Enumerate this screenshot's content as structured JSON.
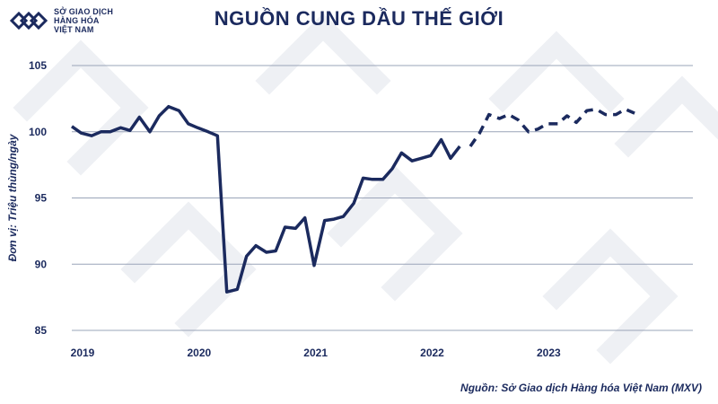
{
  "header": {
    "logo_lines": [
      "SỞ GIAO DỊCH",
      "HÀNG HÓA",
      "VIỆT NAM"
    ],
    "title": "NGUỒN CUNG DẦU THẾ GIỚI"
  },
  "source": "Nguồn: Sở Giao dịch Hàng hóa Việt Nam (MXV)",
  "colors": {
    "primary": "#1b2a5e",
    "grid": "#9aa4b8"
  },
  "chart_data": {
    "type": "line",
    "title": "NGUỒN CUNG DẦU THẾ GIỚI",
    "ylabel": "Đơn vị: Triệu thùng/ngày",
    "xlabel": "",
    "ylim": [
      85,
      105
    ],
    "xlim": [
      2019.0,
      2024.33
    ],
    "yticks": [
      85,
      90,
      95,
      100,
      105
    ],
    "xticks": [
      {
        "label": "2019",
        "value": 2019.0
      },
      {
        "label": "2020",
        "value": 2020.0
      },
      {
        "label": "2021",
        "value": 2021.0
      },
      {
        "label": "2022",
        "value": 2022.0
      },
      {
        "label": "2023",
        "value": 2023.0
      }
    ],
    "grid": true,
    "series": [
      {
        "style": "solid",
        "points": [
          [
            2019.0,
            100.4
          ],
          [
            2019.08,
            99.9
          ],
          [
            2019.17,
            99.7
          ],
          [
            2019.25,
            100.0
          ],
          [
            2019.33,
            100.0
          ],
          [
            2019.42,
            100.3
          ],
          [
            2019.5,
            100.1
          ],
          [
            2019.58,
            101.1
          ],
          [
            2019.67,
            100.0
          ],
          [
            2019.75,
            101.2
          ],
          [
            2019.83,
            101.9
          ],
          [
            2019.92,
            101.6
          ],
          [
            2020.0,
            100.6
          ],
          [
            2020.08,
            100.3
          ],
          [
            2020.17,
            100.0
          ],
          [
            2020.25,
            99.7
          ],
          [
            2020.33,
            87.9
          ],
          [
            2020.42,
            88.1
          ],
          [
            2020.5,
            90.6
          ],
          [
            2020.58,
            91.4
          ],
          [
            2020.67,
            90.9
          ],
          [
            2020.75,
            91.0
          ],
          [
            2020.83,
            92.8
          ],
          [
            2020.92,
            92.7
          ],
          [
            2021.0,
            93.5
          ],
          [
            2021.08,
            89.9
          ],
          [
            2021.17,
            93.3
          ],
          [
            2021.25,
            93.4
          ],
          [
            2021.33,
            93.6
          ],
          [
            2021.42,
            94.6
          ],
          [
            2021.5,
            96.5
          ],
          [
            2021.58,
            96.4
          ],
          [
            2021.67,
            96.4
          ],
          [
            2021.75,
            97.2
          ],
          [
            2021.83,
            98.4
          ],
          [
            2021.92,
            97.8
          ],
          [
            2022.0,
            98.0
          ],
          [
            2022.08,
            98.2
          ],
          [
            2022.17,
            99.4
          ],
          [
            2022.25,
            98.0
          ],
          [
            2022.33,
            98.9
          ]
        ]
      },
      {
        "style": "dashed",
        "points": [
          [
            2022.42,
            98.9
          ],
          [
            2022.5,
            99.9
          ],
          [
            2022.58,
            101.3
          ],
          [
            2022.67,
            101.0
          ],
          [
            2022.75,
            101.3
          ],
          [
            2022.83,
            100.9
          ],
          [
            2022.92,
            100.0
          ],
          [
            2023.0,
            100.2
          ],
          [
            2023.08,
            100.6
          ],
          [
            2023.17,
            100.6
          ],
          [
            2023.25,
            101.2
          ],
          [
            2023.33,
            100.7
          ],
          [
            2023.42,
            101.6
          ],
          [
            2023.5,
            101.7
          ],
          [
            2023.58,
            101.3
          ],
          [
            2023.67,
            101.3
          ],
          [
            2023.75,
            101.7
          ],
          [
            2023.83,
            101.4
          ]
        ]
      }
    ]
  }
}
